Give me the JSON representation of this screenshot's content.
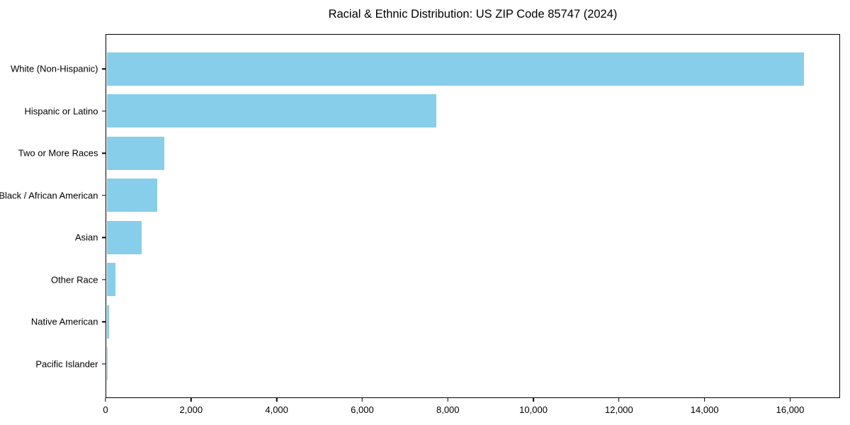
{
  "chart_data": {
    "type": "bar",
    "orientation": "horizontal",
    "title": "Racial & Ethnic Distribution: US ZIP Code 85747 (2024)",
    "categories": [
      "White (Non-Hispanic)",
      "Hispanic or Latino",
      "Two or More Races",
      "Black / African American",
      "Asian",
      "Other Race",
      "Native American",
      "Pacific Islander"
    ],
    "values": [
      16350,
      7730,
      1350,
      1190,
      820,
      200,
      65,
      10
    ],
    "bar_color": "#87CEEB",
    "axis_color": "#000000",
    "text_color": "#000000",
    "background_color": "#ffffff",
    "xlabel": "",
    "ylabel": "",
    "xlim": [
      0,
      17167
    ],
    "x_tick_values": [
      0,
      2000,
      4000,
      6000,
      8000,
      10000,
      12000,
      14000,
      16000
    ],
    "x_tick_labels": [
      "0",
      "2,000",
      "4,000",
      "6,000",
      "8,000",
      "10,000",
      "12,000",
      "14,000",
      "16,000"
    ],
    "grid": false,
    "legend": "none"
  }
}
